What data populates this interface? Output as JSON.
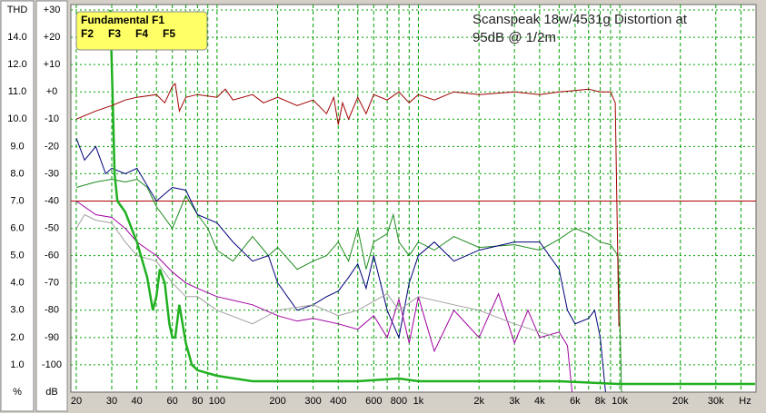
{
  "chart_data": {
    "type": "line",
    "title_lines": [
      "Scanspeak 18w/4531g Distortion at",
      "95dB @ 1/2m"
    ],
    "x_unit": "Hz",
    "y_unit": "dB",
    "y2_label": "THD",
    "y2_unit": "%",
    "log_x": true,
    "grid": true,
    "grid_color": "#00a000",
    "xlim": [
      18.8,
      47500
    ],
    "ylim": [
      -110,
      32
    ],
    "xticks": [
      20,
      30,
      40,
      60,
      80,
      100,
      200,
      300,
      400,
      600,
      800,
      {
        "value": 1000,
        "label": "1k"
      },
      {
        "value": 2000,
        "label": "2k"
      },
      {
        "value": 3000,
        "label": "3k"
      },
      {
        "value": 4000,
        "label": "4k"
      },
      {
        "value": 6000,
        "label": "6k"
      },
      {
        "value": 8000,
        "label": "8k"
      },
      {
        "value": 10000,
        "label": "10k"
      },
      {
        "value": 20000,
        "label": "20k"
      },
      {
        "value": 30000,
        "label": "30k"
      }
    ],
    "xminor": [
      50,
      70,
      90,
      500,
      700,
      900,
      5000,
      7000,
      9000,
      40000
    ],
    "yticks": [
      {
        "value": 30,
        "label": "+30"
      },
      {
        "value": 20,
        "label": "+20"
      },
      {
        "value": 10,
        "label": "+10"
      },
      {
        "value": 0,
        "label": "+0"
      },
      -10,
      -20,
      -30,
      -40,
      -50,
      -60,
      -70,
      -80,
      -90,
      -100
    ],
    "y2ticks": [
      {
        "value": 14,
        "label": "14.0"
      },
      {
        "value": 12,
        "label": "12.0"
      },
      {
        "value": 11,
        "label": "11.0"
      },
      {
        "value": 10,
        "label": "10.0"
      },
      {
        "value": 9,
        "label": "9.0"
      },
      {
        "value": 8,
        "label": "8.0"
      },
      {
        "value": 7,
        "label": "7.0"
      },
      {
        "value": 6,
        "label": "6.0"
      },
      {
        "value": 5,
        "label": "5.0"
      },
      {
        "value": 4,
        "label": "4.0"
      },
      {
        "value": 3,
        "label": "3.0"
      },
      {
        "value": 2,
        "label": "2.0"
      },
      {
        "value": 1,
        "label": "1.0"
      }
    ],
    "hline": {
      "value": -40,
      "color": "#b00000"
    },
    "legend_title": {
      "name": "Fundamental F1",
      "color": "#b00000"
    },
    "series": [
      {
        "name": "F2",
        "color": "#208a20",
        "label_color": "#00b000",
        "width": 1,
        "x": [
          20,
          25,
          30,
          35,
          40,
          45,
          50,
          60,
          70,
          80,
          90,
          100,
          120,
          150,
          180,
          200,
          250,
          300,
          350,
          400,
          450,
          500,
          550,
          600,
          700,
          750,
          800,
          900,
          1000,
          1200,
          1500,
          2000,
          3000,
          4000,
          5000,
          6000,
          7000,
          8000,
          9000,
          9800,
          10000,
          10200
        ],
        "values": [
          -35,
          -33,
          -32,
          -33,
          -32,
          -35,
          -42,
          -50,
          -38,
          -45,
          -50,
          -58,
          -62,
          -53,
          -60,
          -57,
          -65,
          -62,
          -60,
          -55,
          -62,
          -50,
          -65,
          -55,
          -52,
          -45,
          -55,
          -60,
          -55,
          -58,
          -53,
          -57,
          -56,
          -58,
          -54,
          -50,
          -52,
          -55,
          -56,
          -60,
          -80,
          -110
        ]
      },
      {
        "name": "F3",
        "color": "#00007a",
        "label_color": "#00007a",
        "width": 1,
        "x": [
          20,
          22,
          25,
          28,
          30,
          35,
          40,
          50,
          60,
          70,
          80,
          100,
          120,
          150,
          180,
          200,
          250,
          300,
          350,
          400,
          450,
          500,
          550,
          600,
          700,
          800,
          900,
          1000,
          1200,
          1500,
          2000,
          3000,
          4000,
          5000,
          5500,
          6000,
          7000,
          7500,
          8000,
          8500
        ],
        "values": [
          -17,
          -25,
          -20,
          -30,
          -28,
          -30,
          -28,
          -40,
          -35,
          -36,
          -45,
          -48,
          -55,
          -62,
          -60,
          -70,
          -80,
          -78,
          -75,
          -73,
          -68,
          -63,
          -72,
          -60,
          -80,
          -90,
          -70,
          -60,
          -55,
          -62,
          -58,
          -55,
          -55,
          -65,
          -80,
          -85,
          -83,
          -80,
          -90,
          -110
        ]
      },
      {
        "name": "F4",
        "color": "#a000a0",
        "label_color": "#a000a0",
        "width": 1,
        "x": [
          20,
          25,
          30,
          35,
          40,
          50,
          60,
          70,
          80,
          100,
          150,
          200,
          250,
          300,
          400,
          500,
          600,
          700,
          800,
          900,
          1000,
          1200,
          1500,
          2000,
          2500,
          3000,
          3500,
          4000,
          5000,
          5500,
          5800
        ],
        "values": [
          -40,
          -45,
          -46,
          -50,
          -55,
          -60,
          -66,
          -70,
          -72,
          -75,
          -78,
          -82,
          -84,
          -83,
          -85,
          -87,
          -82,
          -90,
          -76,
          -92,
          -75,
          -95,
          -80,
          -90,
          -74,
          -92,
          -80,
          -90,
          -88,
          -93,
          -110
        ]
      },
      {
        "name": "F5",
        "color": "#a0a0a0",
        "label_color": "#b0b0b0",
        "width": 1,
        "x": [
          20,
          22,
          25,
          30,
          35,
          40,
          50,
          60,
          70,
          80,
          100,
          150,
          200,
          300,
          400,
          500,
          700,
          800,
          1000,
          1500,
          2000,
          3000,
          4000,
          5000
        ],
        "values": [
          -50,
          -45,
          -47,
          -48,
          -55,
          -60,
          -62,
          -70,
          -75,
          -75,
          -80,
          -85,
          -80,
          -78,
          -82,
          -80,
          -74,
          -80,
          -75,
          -78,
          -80,
          -85,
          -88,
          -90
        ]
      },
      {
        "color": "#20b020",
        "width": 2.5,
        "x": [
          29.5,
          30,
          30.5,
          31,
          32,
          35,
          40,
          45,
          48,
          50,
          52,
          55,
          58,
          60,
          62,
          65,
          70,
          75,
          80,
          100,
          150,
          200,
          500,
          800,
          1000,
          2000,
          5000,
          9800,
          10000,
          47000
        ],
        "values": [
          30,
          10,
          -10,
          -30,
          -40,
          -44,
          -55,
          -68,
          -80,
          -75,
          -65,
          -70,
          -85,
          -90,
          -90,
          -78,
          -92,
          -100,
          -102,
          -104,
          -106,
          -106,
          -106,
          -105,
          -106,
          -106,
          -106,
          -107,
          -107,
          -107
        ]
      },
      {
        "color": "#a00000",
        "width": 1,
        "x": [
          20,
          25,
          30,
          35,
          40,
          50,
          55,
          60,
          62,
          65,
          70,
          80,
          100,
          110,
          120,
          150,
          170,
          200,
          250,
          300,
          350,
          380,
          400,
          420,
          450,
          500,
          550,
          600,
          700,
          800,
          900,
          1000,
          1200,
          1500,
          2000,
          3000,
          4000,
          5000,
          6000,
          7000,
          8000,
          9000,
          9500,
          9900
        ],
        "values": [
          -10,
          -7,
          -5,
          -3,
          -2,
          -1,
          -4,
          2,
          3,
          -7,
          -2,
          -1,
          -2,
          1,
          -3,
          -1,
          -4,
          -2,
          -5,
          -3,
          -8,
          -2,
          -12,
          -4,
          -10,
          -2,
          -8,
          -1,
          -3,
          0,
          -4,
          -1,
          -3,
          0,
          -1,
          0,
          -1,
          0,
          0.5,
          1,
          0,
          0,
          -4,
          -86
        ]
      }
    ]
  }
}
